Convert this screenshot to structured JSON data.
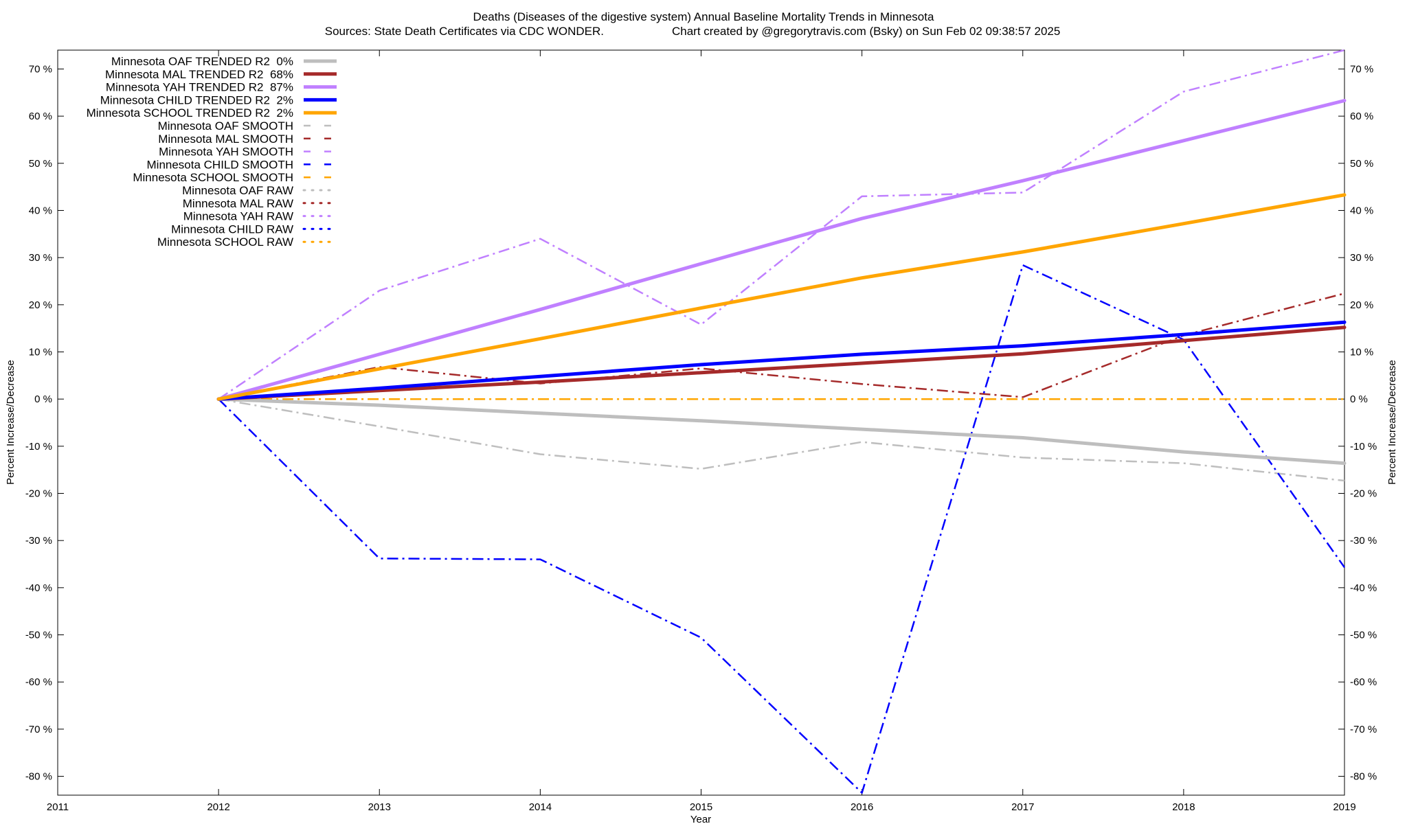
{
  "chart_data": {
    "type": "line",
    "title": "Deaths (Diseases of the digestive system)  Annual Baseline Mortality Trends in Minnesota",
    "subtitle_left": "Sources: State Death Certificates via CDC WONDER.",
    "subtitle_right": "Chart created by @gregorytravis.com (Bsky) on Sun Feb 02 09:38:57 2025",
    "xlabel": "Year",
    "ylabel_left": "Percent Increase/Decrease",
    "ylabel_right": "Percent Increase/Decrease",
    "xlim": [
      2011,
      2019
    ],
    "ylim": [
      -84,
      74
    ],
    "x_ticks": [
      "2011",
      "2012",
      "2013",
      "2014",
      "2015",
      "2016",
      "2017",
      "2018",
      "2019"
    ],
    "y_ticks": [
      "-80 %",
      "-70 %",
      "-60 %",
      "-50 %",
      "-40 %",
      "-30 %",
      "-20 %",
      "-10 %",
      "0 %",
      "10 %",
      "20 %",
      "30 %",
      "40 %",
      "50 %",
      "60 %",
      "70 %"
    ],
    "grid": false,
    "legend_position": "top-left",
    "x": [
      2012,
      2013,
      2014,
      2015,
      2016,
      2017,
      2018,
      2019
    ],
    "trended": [
      {
        "name": "Minnesota OAF TRENDED R2",
        "r2": "0%",
        "color": "#bebebe",
        "values": [
          0,
          -1.3,
          -3.0,
          -4.6,
          -6.4,
          -8.2,
          -11.2,
          -13.6
        ]
      },
      {
        "name": "Minnesota MAL TRENDED R2",
        "r2": "68%",
        "color": "#a52a2a",
        "values": [
          0,
          1.8,
          3.6,
          5.6,
          7.6,
          9.6,
          12.4,
          15.2
        ]
      },
      {
        "name": "Minnesota YAH TRENDED R2",
        "r2": "87%",
        "color": "#c080ff",
        "values": [
          0,
          9.5,
          19.0,
          28.7,
          38.3,
          46.3,
          54.8,
          63.3
        ]
      },
      {
        "name": "Minnesota CHILD TRENDED R2",
        "r2": "2%",
        "color": "#0000ff",
        "values": [
          0,
          2.3,
          4.8,
          7.3,
          9.5,
          11.3,
          13.7,
          16.3
        ]
      },
      {
        "name": "Minnesota SCHOOL TRENDED R2",
        "r2": "2%",
        "color": "#ffa500",
        "values": [
          0,
          6.4,
          12.8,
          19.3,
          25.7,
          31.2,
          37.2,
          43.3
        ]
      }
    ],
    "smooth": [
      {
        "name": "Minnesota OAF SMOOTH",
        "color": "#bebebe",
        "values": [
          0,
          -5.8,
          -11.7,
          -14.8,
          -9.1,
          -12.4,
          -13.6,
          -17.3
        ]
      },
      {
        "name": "Minnesota MAL SMOOTH",
        "color": "#a52a2a",
        "values": [
          0,
          6.8,
          3.3,
          6.5,
          3.2,
          0.4,
          13.5,
          22.4
        ]
      },
      {
        "name": "Minnesota YAH SMOOTH",
        "color": "#c080ff",
        "values": [
          0,
          23.0,
          34.0,
          15.8,
          43.0,
          43.8,
          65.2,
          74.0
        ]
      },
      {
        "name": "Minnesota CHILD SMOOTH",
        "color": "#0000ff",
        "values": [
          0,
          -33.8,
          -34.0,
          -50.6,
          -83.5,
          28.4,
          12.6,
          -35.7
        ]
      },
      {
        "name": "Minnesota SCHOOL SMOOTH",
        "color": "#ffa500",
        "values": [
          0,
          0,
          0,
          0,
          0,
          0,
          0,
          0
        ]
      }
    ],
    "raw": [
      {
        "name": "Minnesota OAF RAW",
        "color": "#bebebe"
      },
      {
        "name": "Minnesota MAL RAW",
        "color": "#a52a2a"
      },
      {
        "name": "Minnesota YAH RAW",
        "color": "#c080ff"
      },
      {
        "name": "Minnesota CHILD RAW",
        "color": "#0000ff"
      },
      {
        "name": "Minnesota SCHOOL RAW",
        "color": "#ffa500"
      }
    ]
  }
}
